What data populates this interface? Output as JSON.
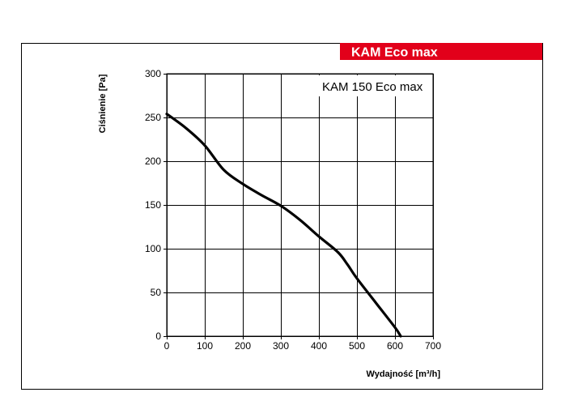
{
  "brand": {
    "label": "KAM Eco max",
    "color": "#e2001a",
    "text_color": "#ffffff"
  },
  "chart_data": {
    "type": "line",
    "title": "KAM 150 Eco max",
    "xlabel": "Wydajność [m³/h]",
    "ylabel": "Ciśnienie [Pa]",
    "xlim": [
      0,
      700
    ],
    "ylim": [
      0,
      300
    ],
    "x_ticks": [
      0,
      100,
      200,
      300,
      400,
      500,
      600,
      700
    ],
    "y_ticks": [
      0,
      50,
      100,
      150,
      200,
      250,
      300
    ],
    "x_tick_labels": [
      "0",
      "100",
      "200",
      "300",
      "400",
      "500",
      "600",
      "700"
    ],
    "y_tick_labels": [
      "0",
      "50",
      "100",
      "150",
      "200",
      "250",
      "300"
    ],
    "grid": true,
    "series": [
      {
        "line_color": "#000000",
        "x": [
          0,
          50,
          100,
          150,
          200,
          250,
          300,
          350,
          400,
          450,
          475,
          500,
          550,
          600,
          615
        ],
        "y": [
          254,
          238,
          218,
          190,
          174,
          161,
          149,
          133,
          114,
          96,
          82,
          66,
          38,
          10,
          0
        ]
      }
    ]
  }
}
